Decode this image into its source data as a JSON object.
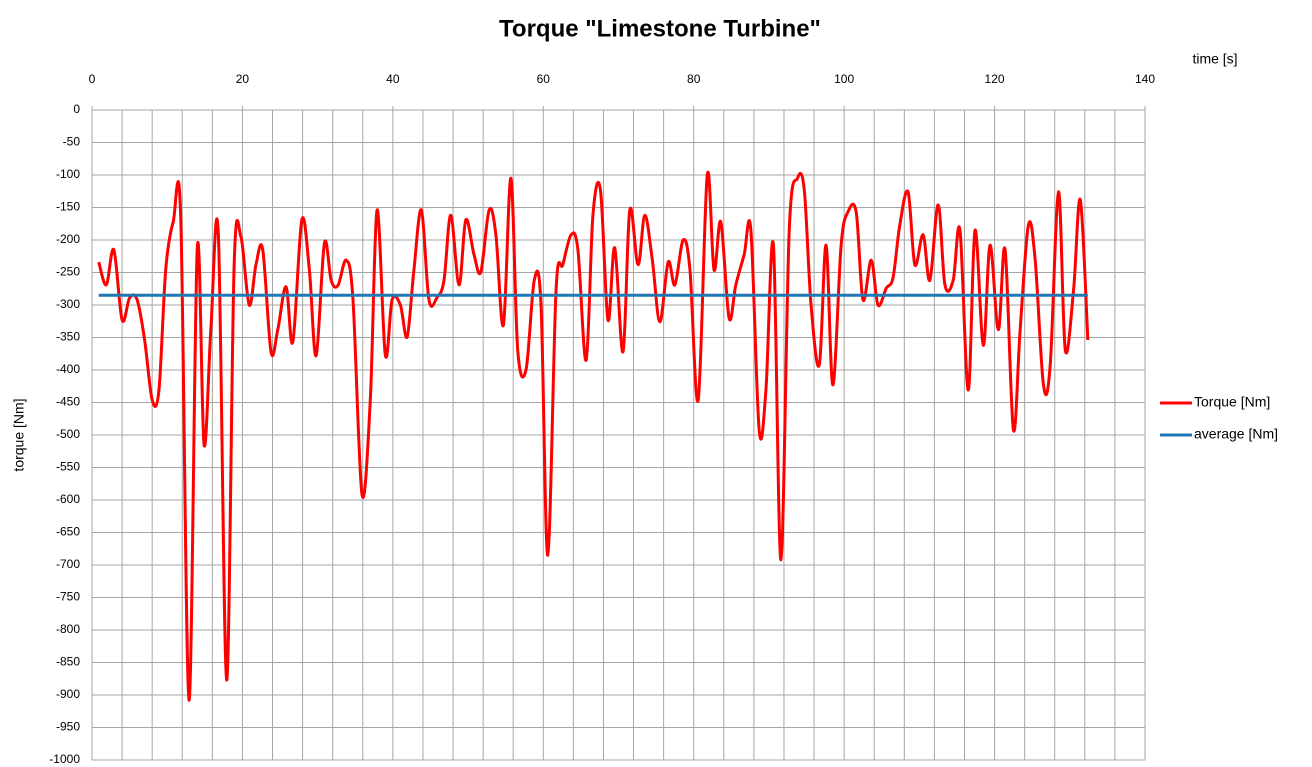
{
  "chart_data": {
    "type": "line",
    "title": "Torque \"Limestone Turbine\"",
    "x_label": "time [s]",
    "y_label": "torque [Nm]",
    "xlim": [
      0,
      140
    ],
    "xticks": [
      0,
      20,
      40,
      60,
      80,
      100,
      120,
      140
    ],
    "x_minor_grid_step": 4,
    "ylim": [
      -1000,
      0
    ],
    "yticks": [
      0,
      -50,
      -100,
      -150,
      -200,
      -250,
      -300,
      -350,
      -400,
      -450,
      -500,
      -550,
      -600,
      -650,
      -700,
      -750,
      -800,
      -850,
      -900,
      -950,
      -1000
    ],
    "grid": true,
    "legend": "right",
    "series": [
      {
        "name": "Torque [Nm]",
        "color": "#ff0000",
        "x": [
          0.9,
          1.9,
          2.9,
          4,
          5,
          6,
          7,
          8,
          8.9,
          9.8,
          10.8,
          11.8,
          12.9,
          14,
          14.9,
          15.8,
          16.8,
          17.9,
          18.9,
          19.8,
          20.9,
          21.8,
          22.7,
          23.8,
          24.7,
          25.8,
          26.7,
          27.9,
          28.9,
          29.8,
          30.9,
          31.8,
          32.7,
          33.8,
          34.7,
          35.9,
          37,
          37.9,
          39,
          39.9,
          41,
          41.9,
          42.8,
          43.8,
          44.8,
          45.9,
          46.8,
          47.7,
          48.8,
          49.7,
          50.8,
          51.7,
          52.8,
          53.7,
          54.7,
          55.7,
          56.6,
          57.7,
          58.8,
          59.7,
          60.6,
          61.7,
          62.6,
          63.7,
          64.6,
          65.7,
          66.6,
          67.6,
          68.6,
          69.5,
          70.6,
          71.5,
          72.6,
          73.5,
          74.5,
          75.5,
          76.6,
          77.5,
          78.6,
          79.5,
          80.6,
          81.8,
          82.7,
          83.6,
          84.7,
          85.6,
          86.7,
          87.6,
          88.7,
          89.6,
          90.6,
          91.6,
          92.7,
          93.8,
          94.7,
          95.6,
          96.7,
          97.6,
          98.5,
          99.6,
          100.5,
          101.6,
          102.5,
          103.6,
          104.5,
          105.6,
          106.5,
          107.4,
          108.5,
          109.4,
          110.5,
          111.4,
          112.5,
          113.4,
          114.5,
          115.4,
          116.5,
          117.4,
          118.5,
          119.4,
          120.5,
          121.4,
          122.5,
          123.4,
          124.5,
          125.4,
          126.5,
          127.4,
          128.5,
          129.4,
          130.5,
          131.4,
          132.4
        ],
        "values": [
          -234,
          -269,
          -215,
          -323,
          -289,
          -292,
          -354,
          -446,
          -431,
          -246,
          -172,
          -166,
          -908,
          -212,
          -515,
          -338,
          -192,
          -877,
          -238,
          -195,
          -300,
          -238,
          -215,
          -372,
          -338,
          -272,
          -357,
          -169,
          -246,
          -378,
          -205,
          -262,
          -270,
          -231,
          -292,
          -592,
          -446,
          -154,
          -377,
          -292,
          -300,
          -349,
          -246,
          -154,
          -292,
          -288,
          -262,
          -162,
          -269,
          -169,
          -223,
          -249,
          -154,
          -192,
          -331,
          -105,
          -369,
          -400,
          -262,
          -300,
          -685,
          -277,
          -238,
          -192,
          -215,
          -385,
          -162,
          -123,
          -323,
          -212,
          -372,
          -154,
          -238,
          -162,
          -231,
          -326,
          -234,
          -269,
          -200,
          -246,
          -446,
          -100,
          -246,
          -172,
          -320,
          -269,
          -223,
          -185,
          -492,
          -431,
          -208,
          -692,
          -185,
          -105,
          -123,
          -300,
          -392,
          -208,
          -423,
          -208,
          -157,
          -157,
          -292,
          -231,
          -300,
          -274,
          -258,
          -177,
          -126,
          -238,
          -192,
          -262,
          -146,
          -269,
          -262,
          -185,
          -431,
          -185,
          -362,
          -208,
          -338,
          -215,
          -492,
          -338,
          -177,
          -231,
          -423,
          -392,
          -126,
          -369,
          -277,
          -138,
          -354
        ]
      },
      {
        "name": "average [Nm]",
        "color": "#1f77b4",
        "x": [
          0.9,
          132.4
        ],
        "values": [
          -285,
          -285
        ]
      }
    ]
  }
}
